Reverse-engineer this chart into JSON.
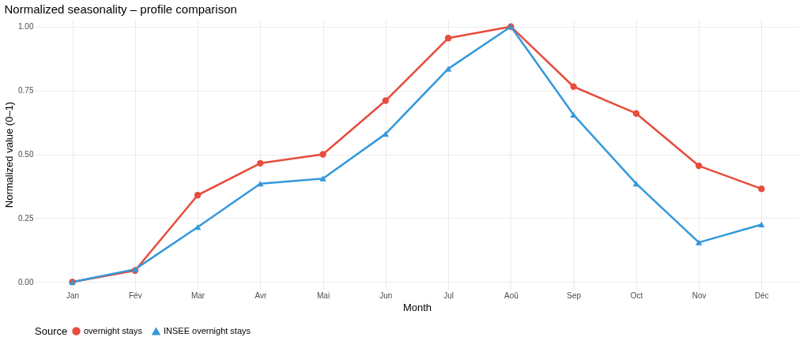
{
  "chart_data": {
    "type": "line",
    "title": "Normalized seasonality – profile comparison",
    "xlabel": "Month",
    "ylabel": "Normalized value (0–1)",
    "legend_title": "Source",
    "categories": [
      "Jan",
      "Fév",
      "Mar",
      "Avr",
      "Mai",
      "Jun",
      "Jul",
      "Aoû",
      "Sep",
      "Oct",
      "Nov",
      "Déc"
    ],
    "series": [
      {
        "name": "overnight stays",
        "color": "#e74c3c",
        "marker": "circle",
        "values": [
          0,
          0.045,
          0.34,
          0.465,
          0.5,
          0.71,
          0.955,
          1.0,
          0.765,
          0.66,
          0.455,
          0.365
        ]
      },
      {
        "name": "INSEE overnight stays",
        "color": "#3498db",
        "marker": "triangle",
        "values": [
          0,
          0.05,
          0.215,
          0.385,
          0.405,
          0.58,
          0.835,
          1.0,
          0.655,
          0.385,
          0.155,
          0.225
        ]
      }
    ],
    "ylim": [
      -0.03,
      1.03
    ],
    "yticks": [
      {
        "value": 0,
        "label": "0.00"
      },
      {
        "value": 0.25,
        "label": "0.25"
      },
      {
        "value": 0.5,
        "label": "0.50"
      },
      {
        "value": 0.75,
        "label": "0.75"
      },
      {
        "value": 1,
        "label": "1.00"
      }
    ],
    "grid": true,
    "legend": "bottom",
    "line_style": "solid"
  }
}
